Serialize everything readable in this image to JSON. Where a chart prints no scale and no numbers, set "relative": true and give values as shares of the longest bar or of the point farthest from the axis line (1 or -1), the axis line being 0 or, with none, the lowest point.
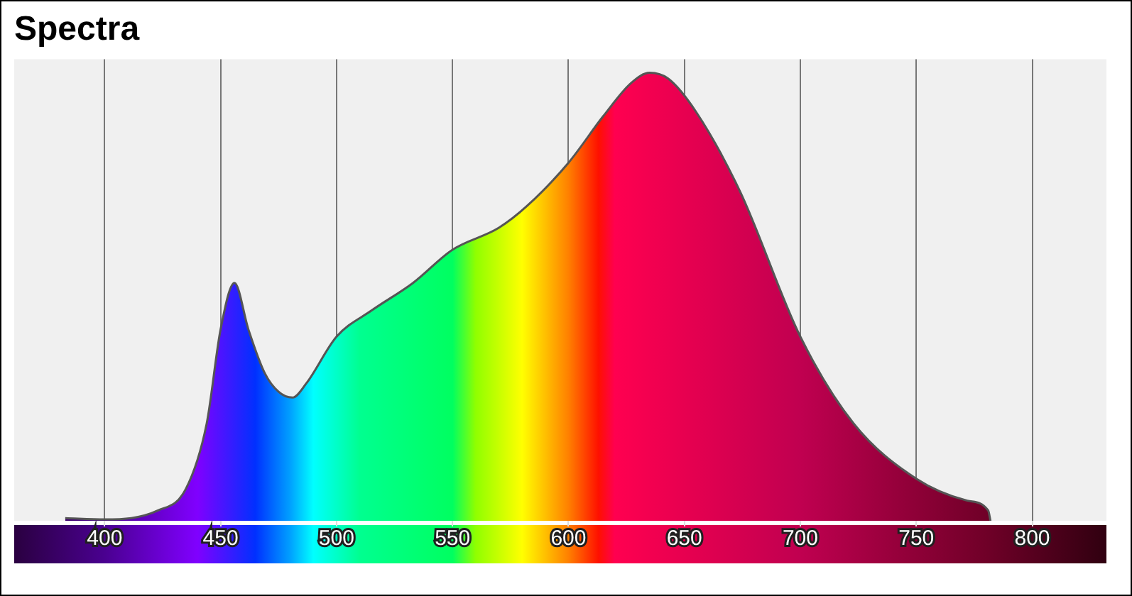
{
  "chart_data": {
    "type": "area",
    "title": "Spectra",
    "relative": true,
    "grid": "x",
    "legend": false,
    "xlim": [
      361,
      832
    ],
    "xticks": [
      400,
      450,
      500,
      550,
      600,
      650,
      700,
      750,
      800
    ],
    "series": [
      {
        "color": "#555555",
        "x": [
          383,
          400,
          423,
          435,
          444,
          450,
          456,
          462,
          469,
          475,
          481,
          487,
          500,
          515,
          533,
          550,
          570,
          582,
          600,
          615,
          627,
          635,
          643,
          655,
          674,
          700,
          723,
          750,
          772,
          781,
          782
        ],
        "values": [
          0.006,
          0.003,
          0.023,
          0.071,
          0.217,
          0.427,
          0.531,
          0.427,
          0.33,
          0.288,
          0.275,
          0.307,
          0.411,
          0.469,
          0.531,
          0.605,
          0.654,
          0.702,
          0.799,
          0.903,
          0.977,
          1,
          0.987,
          0.913,
          0.735,
          0.411,
          0.217,
          0.094,
          0.045,
          0.023,
          0
        ]
      }
    ]
  }
}
